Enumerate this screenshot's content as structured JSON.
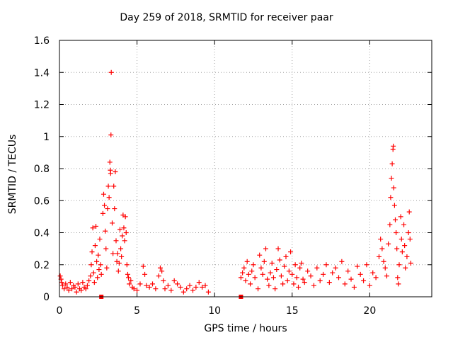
{
  "chart_data": {
    "type": "scatter",
    "title": "Day 259 of 2018, SRMTID for receiver paar",
    "xlabel": "GPS time / hours",
    "ylabel": "SRMTID / TECUs",
    "xlim": [
      0,
      24
    ],
    "ylim": [
      0,
      1.6
    ],
    "xticks": [
      0,
      5,
      10,
      15,
      20
    ],
    "xtick_labels": [
      "0",
      "5",
      "10",
      "15",
      "20"
    ],
    "yticks": [
      0,
      0.2,
      0.4,
      0.6,
      0.8,
      1,
      1.2,
      1.4,
      1.6
    ],
    "ytick_labels": [
      "0",
      "0.2",
      "0.4",
      "0.6",
      "0.8",
      "1",
      "1.2",
      "1.4",
      "1.6"
    ],
    "grid": true,
    "marker": "plus",
    "color": "#ff0000",
    "points": [
      [
        0.05,
        0.13
      ],
      [
        0.1,
        0.11
      ],
      [
        0.15,
        0.09
      ],
      [
        0.2,
        0.07
      ],
      [
        0.3,
        0.05
      ],
      [
        0.4,
        0.08
      ],
      [
        0.5,
        0.06
      ],
      [
        0.6,
        0.04
      ],
      [
        0.7,
        0.09
      ],
      [
        0.8,
        0.05
      ],
      [
        0.9,
        0.07
      ],
      [
        1.0,
        0.06
      ],
      [
        1.1,
        0.03
      ],
      [
        1.2,
        0.08
      ],
      [
        1.3,
        0.05
      ],
      [
        1.4,
        0.04
      ],
      [
        1.5,
        0.09
      ],
      [
        1.6,
        0.06
      ],
      [
        1.7,
        0.05
      ],
      [
        1.8,
        0.07
      ],
      [
        1.9,
        0.1
      ],
      [
        2.0,
        0.13
      ],
      [
        2.05,
        0.2
      ],
      [
        2.1,
        0.28
      ],
      [
        2.15,
        0.43
      ],
      [
        2.2,
        0.15
      ],
      [
        2.25,
        0.09
      ],
      [
        2.3,
        0.32
      ],
      [
        2.35,
        0.44
      ],
      [
        2.4,
        0.22
      ],
      [
        2.45,
        0.12
      ],
      [
        2.5,
        0.26
      ],
      [
        2.55,
        0.17
      ],
      [
        2.6,
        0.36
      ],
      [
        2.65,
        0.2
      ],
      [
        2.7,
        0.14
      ],
      [
        2.8,
        0.52
      ],
      [
        2.85,
        0.64
      ],
      [
        2.9,
        0.57
      ],
      [
        2.95,
        0.41
      ],
      [
        3.0,
        0.3
      ],
      [
        3.05,
        0.18
      ],
      [
        3.1,
        0.55
      ],
      [
        3.15,
        0.69
      ],
      [
        3.2,
        0.62
      ],
      [
        3.25,
        0.84
      ],
      [
        3.28,
        0.79
      ],
      [
        3.3,
        0.77
      ],
      [
        3.32,
        1.01
      ],
      [
        3.34,
        1.4
      ],
      [
        3.4,
        0.46
      ],
      [
        3.45,
        0.27
      ],
      [
        3.5,
        0.69
      ],
      [
        3.55,
        0.55
      ],
      [
        3.6,
        0.78
      ],
      [
        3.65,
        0.35
      ],
      [
        3.7,
        0.22
      ],
      [
        3.75,
        0.27
      ],
      [
        3.8,
        0.16
      ],
      [
        3.85,
        0.21
      ],
      [
        3.9,
        0.42
      ],
      [
        3.95,
        0.3
      ],
      [
        4.0,
        0.25
      ],
      [
        4.05,
        0.38
      ],
      [
        4.1,
        0.51
      ],
      [
        4.15,
        0.43
      ],
      [
        4.2,
        0.35
      ],
      [
        4.25,
        0.5
      ],
      [
        4.3,
        0.4
      ],
      [
        4.35,
        0.2
      ],
      [
        4.4,
        0.14
      ],
      [
        4.45,
        0.12
      ],
      [
        4.5,
        0.08
      ],
      [
        4.6,
        0.1
      ],
      [
        4.7,
        0.06
      ],
      [
        4.8,
        0.05
      ],
      [
        5.0,
        0.04
      ],
      [
        5.2,
        0.08
      ],
      [
        5.4,
        0.19
      ],
      [
        5.5,
        0.14
      ],
      [
        5.6,
        0.07
      ],
      [
        5.8,
        0.06
      ],
      [
        6.0,
        0.08
      ],
      [
        6.2,
        0.05
      ],
      [
        6.4,
        0.13
      ],
      [
        6.5,
        0.18
      ],
      [
        6.6,
        0.16
      ],
      [
        6.7,
        0.1
      ],
      [
        6.8,
        0.05
      ],
      [
        7.0,
        0.07
      ],
      [
        7.2,
        0.04
      ],
      [
        7.4,
        0.1
      ],
      [
        7.6,
        0.08
      ],
      [
        7.8,
        0.06
      ],
      [
        8.0,
        0.03
      ],
      [
        8.2,
        0.05
      ],
      [
        8.4,
        0.07
      ],
      [
        8.6,
        0.04
      ],
      [
        8.8,
        0.06
      ],
      [
        9.0,
        0.09
      ],
      [
        9.2,
        0.06
      ],
      [
        9.4,
        0.07
      ],
      [
        9.6,
        0.03
      ],
      [
        11.7,
        0.12
      ],
      [
        11.8,
        0.15
      ],
      [
        11.9,
        0.18
      ],
      [
        12.0,
        0.1
      ],
      [
        12.1,
        0.22
      ],
      [
        12.2,
        0.14
      ],
      [
        12.3,
        0.08
      ],
      [
        12.4,
        0.16
      ],
      [
        12.5,
        0.2
      ],
      [
        12.6,
        0.12
      ],
      [
        12.8,
        0.05
      ],
      [
        12.9,
        0.26
      ],
      [
        13.0,
        0.18
      ],
      [
        13.1,
        0.14
      ],
      [
        13.2,
        0.22
      ],
      [
        13.3,
        0.3
      ],
      [
        13.4,
        0.11
      ],
      [
        13.5,
        0.07
      ],
      [
        13.6,
        0.15
      ],
      [
        13.7,
        0.21
      ],
      [
        13.8,
        0.12
      ],
      [
        13.9,
        0.05
      ],
      [
        14.0,
        0.17
      ],
      [
        14.1,
        0.3
      ],
      [
        14.2,
        0.23
      ],
      [
        14.3,
        0.13
      ],
      [
        14.4,
        0.08
      ],
      [
        14.5,
        0.19
      ],
      [
        14.6,
        0.25
      ],
      [
        14.7,
        0.1
      ],
      [
        14.8,
        0.16
      ],
      [
        14.9,
        0.28
      ],
      [
        15.0,
        0.14
      ],
      [
        15.1,
        0.08
      ],
      [
        15.2,
        0.2
      ],
      [
        15.3,
        0.12
      ],
      [
        15.4,
        0.06
      ],
      [
        15.5,
        0.18
      ],
      [
        15.6,
        0.21
      ],
      [
        15.7,
        0.11
      ],
      [
        15.8,
        0.09
      ],
      [
        16.0,
        0.16
      ],
      [
        16.2,
        0.13
      ],
      [
        16.4,
        0.07
      ],
      [
        16.6,
        0.18
      ],
      [
        16.8,
        0.1
      ],
      [
        17.0,
        0.14
      ],
      [
        17.2,
        0.2
      ],
      [
        17.4,
        0.09
      ],
      [
        17.6,
        0.15
      ],
      [
        17.8,
        0.18
      ],
      [
        18.0,
        0.12
      ],
      [
        18.2,
        0.22
      ],
      [
        18.4,
        0.08
      ],
      [
        18.6,
        0.16
      ],
      [
        18.8,
        0.11
      ],
      [
        19.0,
        0.06
      ],
      [
        19.2,
        0.19
      ],
      [
        19.4,
        0.14
      ],
      [
        19.6,
        0.1
      ],
      [
        19.8,
        0.2
      ],
      [
        20.0,
        0.07
      ],
      [
        20.2,
        0.15
      ],
      [
        20.4,
        0.12
      ],
      [
        20.6,
        0.25
      ],
      [
        20.7,
        0.36
      ],
      [
        20.8,
        0.3
      ],
      [
        20.9,
        0.22
      ],
      [
        21.0,
        0.18
      ],
      [
        21.1,
        0.13
      ],
      [
        21.2,
        0.33
      ],
      [
        21.3,
        0.45
      ],
      [
        21.35,
        0.62
      ],
      [
        21.4,
        0.74
      ],
      [
        21.45,
        0.83
      ],
      [
        21.5,
        0.92
      ],
      [
        21.52,
        0.94
      ],
      [
        21.55,
        0.68
      ],
      [
        21.6,
        0.57
      ],
      [
        21.65,
        0.48
      ],
      [
        21.7,
        0.4
      ],
      [
        21.75,
        0.3
      ],
      [
        21.8,
        0.12
      ],
      [
        21.85,
        0.08
      ],
      [
        21.9,
        0.2
      ],
      [
        22.0,
        0.5
      ],
      [
        22.05,
        0.36
      ],
      [
        22.1,
        0.28
      ],
      [
        22.2,
        0.45
      ],
      [
        22.25,
        0.32
      ],
      [
        22.3,
        0.18
      ],
      [
        22.4,
        0.25
      ],
      [
        22.5,
        0.4
      ],
      [
        22.55,
        0.53
      ],
      [
        22.6,
        0.36
      ],
      [
        22.65,
        0.21
      ]
    ],
    "baseline_markers": [
      [
        2.7,
        0.0
      ],
      [
        11.7,
        0.0
      ]
    ]
  }
}
